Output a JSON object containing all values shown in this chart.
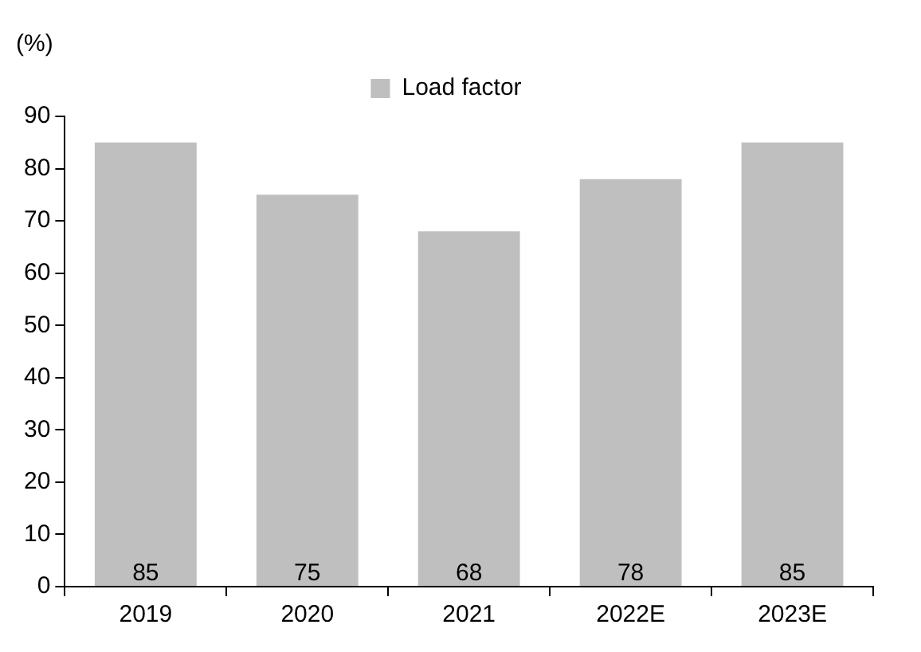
{
  "chart_data": {
    "type": "bar",
    "ylabel": "(%)",
    "categories": [
      "2019",
      "2020",
      "2021",
      "2022E",
      "2023E"
    ],
    "series": [
      {
        "name": "Load factor",
        "color": "#bfbfbf",
        "values": [
          85,
          75,
          68,
          78,
          85
        ]
      }
    ],
    "ylim": [
      0,
      90
    ],
    "yticks": [
      0,
      10,
      20,
      30,
      40,
      50,
      60,
      70,
      80,
      90
    ],
    "data_labels": true,
    "legend": "top",
    "grid": false
  }
}
